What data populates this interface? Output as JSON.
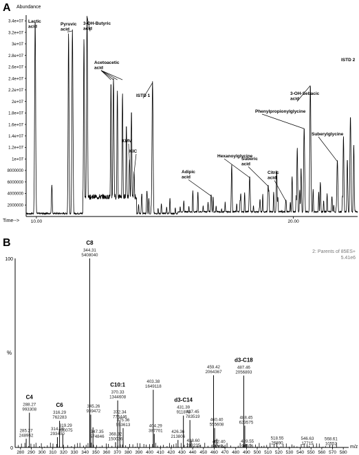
{
  "panel_a": {
    "letter": "A",
    "y_title": "Abundance",
    "x_title": "Time-->",
    "y_ticks": [
      {
        "v": 34000000,
        "label": "3.4e+07"
      },
      {
        "v": 32000000,
        "label": "3.2e+07"
      },
      {
        "v": 30000000,
        "label": "3e+07"
      },
      {
        "v": 28000000,
        "label": "2.8e+07"
      },
      {
        "v": 26000000,
        "label": "2.6e+07"
      },
      {
        "v": 24000000,
        "label": "2.4e+07"
      },
      {
        "v": 22000000,
        "label": "2.2e+07"
      },
      {
        "v": 20000000,
        "label": "2e+07"
      },
      {
        "v": 18000000,
        "label": "1.8e+07"
      },
      {
        "v": 16000000,
        "label": "1.6e+07"
      },
      {
        "v": 14000000,
        "label": "1.4e+07"
      },
      {
        "v": 12000000,
        "label": "1.2e+07"
      },
      {
        "v": 10000000,
        "label": "1e+07"
      },
      {
        "v": 8000000,
        "label": "8000000"
      },
      {
        "v": 6000000,
        "label": "6000000"
      },
      {
        "v": 4000000,
        "label": "4000000"
      },
      {
        "v": 2000000,
        "label": "2000000"
      }
    ],
    "x_ticks": [
      {
        "v": 10,
        "label": "10.00"
      },
      {
        "v": 20,
        "label": "20.00"
      }
    ],
    "peak_labels": [
      {
        "lines": [
          "Lactic",
          "acid"
        ]
      },
      {
        "lines": [
          "Pyruvic",
          "acid"
        ]
      },
      {
        "lines": [
          "3-OH-Butyric",
          "acid"
        ]
      },
      {
        "lines": [
          "Acetoacetic",
          "acid"
        ]
      },
      {
        "lines": [
          "ISTD 1"
        ]
      },
      {
        "lines": [
          "KMV"
        ]
      },
      {
        "lines": [
          "KIC"
        ]
      },
      {
        "lines": [
          "Adipic",
          "acid"
        ]
      },
      {
        "lines": [
          "Hexanoylglycine"
        ]
      },
      {
        "lines": [
          "Suberic",
          "acid"
        ]
      },
      {
        "lines": [
          "Citric",
          "acid"
        ]
      },
      {
        "lines": [
          "Phenylpropionylglycine"
        ]
      },
      {
        "lines": [
          "3-OH-Sebacic",
          "acid"
        ]
      },
      {
        "lines": [
          "ISTD 2"
        ]
      },
      {
        "lines": [
          "Suberylglycine"
        ]
      }
    ]
  },
  "panel_b": {
    "letter": "B",
    "header_line1": "2: Parents of 85ES+",
    "header_line2": "5.41e6",
    "y_top_label": "100",
    "y_unit_label": "%",
    "y_bottom_label": "0",
    "x_unit_label": "m/z",
    "x_ticks": [
      "280",
      "290",
      "300",
      "310",
      "320",
      "330",
      "340",
      "350",
      "360",
      "370",
      "380",
      "390",
      "400",
      "410",
      "420",
      "430",
      "440",
      "450",
      "460",
      "470",
      "480",
      "490",
      "500",
      "510",
      "520",
      "530",
      "540",
      "550",
      "560",
      "570",
      "580"
    ],
    "peaks": [
      {
        "mz": "285.27",
        "intensity": "248962"
      },
      {
        "mz": "288.27",
        "intensity": "993308"
      },
      {
        "mz": "314.28",
        "intensity": "293400"
      },
      {
        "mz": "316.29",
        "intensity": "762283"
      },
      {
        "mz": "319.29",
        "intensity": "390075"
      },
      {
        "mz": "344.31",
        "intensity": "5408040"
      },
      {
        "mz": "345.26",
        "intensity": "939472"
      },
      {
        "mz": "347.35",
        "intensity": "574846"
      },
      {
        "mz": "368.32",
        "intensity": "150036"
      },
      {
        "mz": "370.33",
        "intensity": "1344608"
      },
      {
        "mz": "372.34",
        "intensity": "776446"
      },
      {
        "mz": "375.36",
        "intensity": "553613"
      },
      {
        "mz": "403.38",
        "intensity": "1649118"
      },
      {
        "mz": "404.29",
        "intensity": "387701"
      },
      {
        "mz": "426.36",
        "intensity": "213806"
      },
      {
        "mz": "431.39",
        "intensity": "911878"
      },
      {
        "mz": "437.45",
        "intensity": "783519"
      },
      {
        "mz": "438.60",
        "intensity": "193235"
      },
      {
        "mz": "459.42",
        "intensity": "2064367"
      },
      {
        "mz": "460.40",
        "intensity": "555608"
      },
      {
        "mz": "462.40",
        "intensity": "246644"
      },
      {
        "mz": "487.46",
        "intensity": "2056893"
      },
      {
        "mz": "488.45",
        "intensity": "623575"
      },
      {
        "mz": "489.55",
        "intensity": "96506"
      },
      {
        "mz": "518.55",
        "intensity": "26890"
      },
      {
        "mz": "546.63",
        "intensity": "17715"
      },
      {
        "mz": "568.61",
        "intensity": "10552"
      }
    ],
    "compound_labels": [
      "C4",
      "C6",
      "C8",
      "C10:1",
      "d3-C14",
      "d3-C18"
    ]
  },
  "chart_data": [
    {
      "type": "line",
      "title": "",
      "xlabel": "Time-->",
      "ylabel": "Abundance",
      "xlim": [
        9.6,
        22.5
      ],
      "ylim": [
        0,
        35000000
      ],
      "peaks": [
        {
          "label": "Lactic acid",
          "time": 9.95,
          "abundance": 34000000
        },
        {
          "label": "Pyruvic acid",
          "time": 11.4,
          "abundance": 32500000
        },
        {
          "label": "3-OH-Butyric acid",
          "time": 11.97,
          "abundance": 35000000
        },
        {
          "label": "Acetoacetic acid",
          "time": 13.0,
          "abundance": 24000000
        },
        {
          "label": "KMV",
          "time": 13.62,
          "abundance": 10000000
        },
        {
          "label": "KIC",
          "time": 13.8,
          "abundance": 7800000
        },
        {
          "label": "ISTD 1",
          "time": 14.52,
          "abundance": 23500000
        },
        {
          "label": "Adipic acid",
          "time": 16.8,
          "abundance": 3800000
        },
        {
          "label": "Hexanoylglycine",
          "time": 18.3,
          "abundance": 7000000
        },
        {
          "label": "Suberic acid",
          "time": 19.02,
          "abundance": 5500000
        },
        {
          "label": "Citric acid",
          "time": 19.71,
          "abundance": 2900000
        },
        {
          "label": "Phenylpropionylglycine",
          "time": 20.42,
          "abundance": 15500000
        },
        {
          "label": "3-OH-Sebacic acid",
          "time": 20.66,
          "abundance": 23000000
        },
        {
          "label": "Suberylglycine",
          "time": 21.71,
          "abundance": 9800000
        },
        {
          "label": "ISTD 2",
          "time": 22.22,
          "abundance": 17500000
        }
      ]
    },
    {
      "type": "bar",
      "title": "2: Parents of 85ES+",
      "xlabel": "m/z",
      "ylabel": "%",
      "xlim": [
        275,
        585
      ],
      "ylim": [
        0,
        100
      ],
      "base_peak_intensity": 5408040,
      "series": [
        {
          "mz": [
            285.27,
            288.27,
            314.28,
            316.29,
            319.29,
            344.31,
            345.26,
            347.35,
            368.32,
            370.33,
            372.34,
            375.36,
            403.38,
            404.29,
            426.36,
            431.39,
            437.45,
            438.6,
            459.42,
            460.4,
            462.4,
            487.46,
            488.45,
            489.55,
            518.55,
            546.63,
            568.61
          ],
          "intensity": [
            248962,
            993308,
            293400,
            762283,
            390075,
            5408040,
            939472,
            574846,
            150036,
            1344608,
            776446,
            553613,
            1649118,
            387701,
            213806,
            911878,
            783519,
            193235,
            2064367,
            555608,
            246644,
            2056893,
            623575,
            96506,
            26890,
            17715,
            10552
          ]
        }
      ],
      "annotations": [
        {
          "label": "C4",
          "mz": 288.27
        },
        {
          "label": "C6",
          "mz": 316.29
        },
        {
          "label": "C8",
          "mz": 344.31
        },
        {
          "label": "C10:1",
          "mz": 370.33
        },
        {
          "label": "d3-C14",
          "mz": 431.39
        },
        {
          "label": "d3-C18",
          "mz": 487.46
        }
      ]
    }
  ]
}
